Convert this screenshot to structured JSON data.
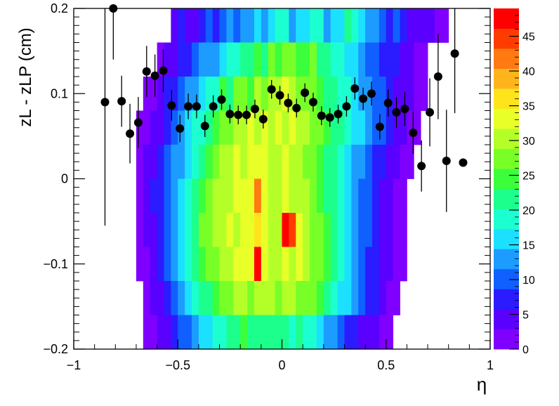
{
  "chart_data": {
    "type": "heatmap",
    "xlabel": "η",
    "ylabel": "zL - zLP (cm)",
    "xlim": [
      -1,
      1
    ],
    "ylim": [
      -0.2,
      0.2
    ],
    "x_ticks": [
      {
        "value": -1,
        "label": "−1"
      },
      {
        "value": -0.5,
        "label": "−0.5"
      },
      {
        "value": 0,
        "label": "0"
      },
      {
        "value": 0.5,
        "label": "0.5"
      },
      {
        "value": 1,
        "label": "1"
      }
    ],
    "y_ticks": [
      {
        "value": -0.2,
        "label": "−0.2"
      },
      {
        "value": -0.1,
        "label": "−0.1"
      },
      {
        "value": 0,
        "label": "0"
      },
      {
        "value": 0.1,
        "label": "0.1"
      },
      {
        "value": 0.2,
        "label": "0.2"
      }
    ],
    "z_range": [
      0,
      49
    ],
    "z_ticks": [
      0,
      5,
      10,
      15,
      20,
      25,
      30,
      35,
      40,
      45
    ],
    "colormap": [
      "#7f00ff",
      "#5a00ff",
      "#2a1cff",
      "#1060ff",
      "#1c9cff",
      "#1ce0ff",
      "#1cffd0",
      "#1cff8c",
      "#3cff3c",
      "#78ff28",
      "#b4ff28",
      "#e8ff28",
      "#ffe41c",
      "#ffb41c",
      "#ff7a10",
      "#ff3c00",
      "#ff0000"
    ],
    "heatmap": {
      "x_edges_range": [
        -1,
        1
      ],
      "x_bins": 60,
      "y_edges_range": [
        -0.2,
        0.2
      ],
      "y_bins": 10,
      "counts": [
        [
          0,
          0,
          0,
          0,
          0,
          0,
          0,
          0,
          0,
          0,
          0,
          0,
          0,
          0,
          3,
          8,
          4,
          3,
          6,
          10,
          8,
          10,
          12,
          9,
          12,
          14,
          16,
          14,
          17,
          20,
          18,
          14,
          16,
          17,
          18,
          20,
          14,
          16,
          17,
          22,
          18,
          16,
          14,
          12,
          10,
          8,
          9,
          6,
          5,
          4,
          3,
          4,
          2,
          1,
          0,
          0,
          0,
          0,
          0,
          0
        ],
        [
          0,
          0,
          0,
          0,
          0,
          0,
          0,
          0,
          0,
          0,
          0,
          0,
          1,
          3,
          5,
          6,
          7,
          9,
          12,
          14,
          13,
          16,
          18,
          20,
          22,
          21,
          24,
          22,
          26,
          25,
          28,
          27,
          24,
          25,
          26,
          23,
          22,
          20,
          18,
          16,
          15,
          12,
          11,
          10,
          8,
          7,
          6,
          4,
          3,
          2,
          1,
          0,
          0,
          0,
          0,
          0,
          0,
          0,
          0,
          0
        ],
        [
          0,
          0,
          0,
          0,
          0,
          0,
          0,
          0,
          0,
          0,
          1,
          2,
          4,
          6,
          8,
          10,
          12,
          14,
          16,
          18,
          20,
          24,
          22,
          26,
          28,
          25,
          30,
          27,
          29,
          30,
          32,
          30,
          28,
          27,
          26,
          24,
          22,
          22,
          20,
          18,
          16,
          14,
          12,
          10,
          9,
          7,
          5,
          4,
          3,
          2,
          1,
          0,
          0,
          0,
          0,
          0,
          0,
          0,
          0,
          0
        ],
        [
          0,
          0,
          0,
          0,
          0,
          0,
          0,
          0,
          0,
          1,
          2,
          4,
          5,
          8,
          10,
          12,
          15,
          18,
          20,
          22,
          24,
          26,
          27,
          30,
          29,
          34,
          30,
          32,
          31,
          33,
          30,
          32,
          31,
          29,
          28,
          26,
          24,
          23,
          21,
          19,
          17,
          15,
          13,
          11,
          9,
          7,
          5,
          4,
          2,
          1,
          0,
          0,
          0,
          0,
          0,
          0,
          0,
          0,
          0,
          0
        ],
        [
          0,
          0,
          0,
          0,
          0,
          0,
          0,
          0,
          0,
          1,
          3,
          5,
          7,
          9,
          12,
          14,
          17,
          20,
          22,
          25,
          27,
          29,
          30,
          32,
          31,
          33,
          34,
          32,
          31,
          30,
          33,
          31,
          30,
          28,
          27,
          25,
          23,
          21,
          19,
          17,
          14,
          12,
          10,
          8,
          6,
          4,
          3,
          2,
          1,
          0,
          0,
          0,
          0,
          0,
          0,
          0,
          0,
          0,
          0,
          0
        ],
        [
          0,
          0,
          0,
          0,
          0,
          0,
          0,
          0,
          0,
          1,
          3,
          6,
          8,
          11,
          14,
          17,
          20,
          22,
          25,
          27,
          29,
          31,
          30,
          33,
          32,
          34,
          41,
          32,
          31,
          30,
          32,
          31,
          30,
          29,
          27,
          25,
          23,
          21,
          19,
          16,
          13,
          11,
          9,
          7,
          5,
          3,
          2,
          1,
          0,
          0,
          0,
          0,
          0,
          0,
          0,
          0,
          0,
          0,
          0,
          0
        ],
        [
          0,
          0,
          0,
          0,
          0,
          0,
          0,
          0,
          0,
          1,
          3,
          5,
          8,
          11,
          14,
          17,
          20,
          23,
          26,
          28,
          30,
          31,
          32,
          31,
          33,
          34,
          35,
          32,
          31,
          30,
          49,
          45,
          34,
          30,
          28,
          26,
          24,
          22,
          19,
          16,
          14,
          11,
          9,
          7,
          5,
          3,
          2,
          1,
          0,
          0,
          0,
          0,
          0,
          0,
          0,
          0,
          0,
          0,
          0,
          0
        ],
        [
          0,
          0,
          0,
          0,
          0,
          0,
          0,
          0,
          0,
          1,
          2,
          4,
          6,
          9,
          12,
          15,
          18,
          21,
          24,
          26,
          28,
          30,
          31,
          32,
          33,
          34,
          49,
          32,
          31,
          30,
          33,
          31,
          34,
          30,
          28,
          26,
          24,
          21,
          18,
          15,
          13,
          10,
          8,
          6,
          4,
          3,
          2,
          1,
          0,
          0,
          0,
          0,
          0,
          0,
          0,
          0,
          0,
          0,
          0,
          0
        ],
        [
          0,
          0,
          0,
          0,
          0,
          0,
          0,
          0,
          0,
          0,
          1,
          3,
          5,
          7,
          10,
          13,
          16,
          18,
          21,
          23,
          25,
          26,
          28,
          29,
          30,
          28,
          29,
          30,
          31,
          28,
          29,
          30,
          28,
          27,
          26,
          24,
          22,
          20,
          17,
          15,
          12,
          10,
          8,
          6,
          4,
          2,
          1,
          0,
          0,
          0,
          0,
          0,
          0,
          0,
          0,
          0,
          0,
          0,
          0,
          0
        ],
        [
          0,
          0,
          0,
          0,
          0,
          0,
          0,
          0,
          0,
          0,
          1,
          2,
          3,
          5,
          7,
          9,
          11,
          13,
          15,
          16,
          18,
          20,
          22,
          22,
          24,
          23,
          22,
          21,
          22,
          23,
          21,
          20,
          22,
          20,
          18,
          16,
          14,
          12,
          10,
          8,
          6,
          5,
          4,
          3,
          2,
          1,
          0,
          0,
          0,
          0,
          0,
          0,
          0,
          0,
          0,
          0,
          0,
          0,
          0,
          0
        ]
      ]
    },
    "points": [
      {
        "x": -0.85,
        "y": 0.09,
        "err": 0.145
      },
      {
        "x": -0.81,
        "y": 0.2,
        "err": 0.06
      },
      {
        "x": -0.77,
        "y": 0.091,
        "err": 0.03
      },
      {
        "x": -0.73,
        "y": 0.053,
        "err": 0.035
      },
      {
        "x": -0.69,
        "y": 0.066,
        "err": 0.03
      },
      {
        "x": -0.65,
        "y": 0.126,
        "err": 0.03
      },
      {
        "x": -0.61,
        "y": 0.121,
        "err": 0.025
      },
      {
        "x": -0.57,
        "y": 0.127,
        "err": 0.025
      },
      {
        "x": -0.53,
        "y": 0.086,
        "err": 0.018
      },
      {
        "x": -0.49,
        "y": 0.059,
        "err": 0.016
      },
      {
        "x": -0.45,
        "y": 0.085,
        "err": 0.015
      },
      {
        "x": -0.41,
        "y": 0.085,
        "err": 0.014
      },
      {
        "x": -0.37,
        "y": 0.062,
        "err": 0.013
      },
      {
        "x": -0.33,
        "y": 0.085,
        "err": 0.013
      },
      {
        "x": -0.29,
        "y": 0.093,
        "err": 0.012
      },
      {
        "x": -0.25,
        "y": 0.076,
        "err": 0.011
      },
      {
        "x": -0.21,
        "y": 0.075,
        "err": 0.011
      },
      {
        "x": -0.17,
        "y": 0.075,
        "err": 0.011
      },
      {
        "x": -0.13,
        "y": 0.082,
        "err": 0.011
      },
      {
        "x": -0.09,
        "y": 0.07,
        "err": 0.011
      },
      {
        "x": -0.05,
        "y": 0.105,
        "err": 0.011
      },
      {
        "x": -0.01,
        "y": 0.098,
        "err": 0.011
      },
      {
        "x": 0.03,
        "y": 0.089,
        "err": 0.011
      },
      {
        "x": 0.07,
        "y": 0.083,
        "err": 0.011
      },
      {
        "x": 0.11,
        "y": 0.101,
        "err": 0.011
      },
      {
        "x": 0.15,
        "y": 0.09,
        "err": 0.011
      },
      {
        "x": 0.19,
        "y": 0.074,
        "err": 0.011
      },
      {
        "x": 0.23,
        "y": 0.072,
        "err": 0.011
      },
      {
        "x": 0.27,
        "y": 0.076,
        "err": 0.011
      },
      {
        "x": 0.31,
        "y": 0.085,
        "err": 0.012
      },
      {
        "x": 0.35,
        "y": 0.106,
        "err": 0.013
      },
      {
        "x": 0.39,
        "y": 0.094,
        "err": 0.013
      },
      {
        "x": 0.43,
        "y": 0.1,
        "err": 0.014
      },
      {
        "x": 0.47,
        "y": 0.061,
        "err": 0.015
      },
      {
        "x": 0.51,
        "y": 0.089,
        "err": 0.016
      },
      {
        "x": 0.55,
        "y": 0.078,
        "err": 0.018
      },
      {
        "x": 0.59,
        "y": 0.082,
        "err": 0.02
      },
      {
        "x": 0.63,
        "y": 0.054,
        "err": 0.025
      },
      {
        "x": 0.67,
        "y": 0.015,
        "err": 0.03
      },
      {
        "x": 0.71,
        "y": 0.078,
        "err": 0.04
      },
      {
        "x": 0.75,
        "y": 0.12,
        "err": 0.05
      },
      {
        "x": 0.79,
        "y": 0.021,
        "err": 0.06
      },
      {
        "x": 0.83,
        "y": 0.147,
        "err": 0.07
      },
      {
        "x": 0.87,
        "y": 0.019,
        "err": 0.0
      }
    ]
  }
}
